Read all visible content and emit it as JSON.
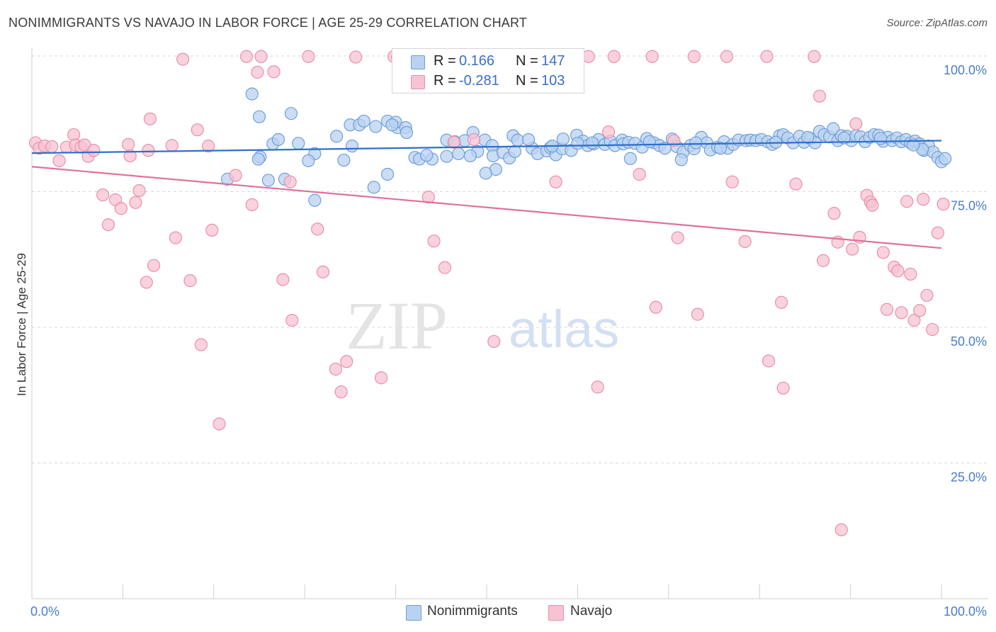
{
  "title": "NONIMMIGRANTS VS NAVAJO IN LABOR FORCE | AGE 25-29 CORRELATION CHART",
  "source": "Source: ZipAtlas.com",
  "watermark": {
    "zip": "ZIP",
    "atlas": "atlas"
  },
  "legend_top": {
    "rows": [
      {
        "r_label": "R =",
        "r_value": "0.166",
        "n_label": "N =",
        "n_value": "147"
      },
      {
        "r_label": "R =",
        "r_value": "-0.281",
        "n_label": "N =",
        "n_value": "103"
      }
    ]
  },
  "legend_bottom": [
    "Nonimmigrants",
    "Navajo"
  ],
  "colors": {
    "blue_fill": "#b9d2f2",
    "blue_stroke": "#6f9fd8",
    "blue_line": "#2f6fcc",
    "pink_fill": "#f7c3d2",
    "pink_stroke": "#e890ab",
    "pink_line": "#e0709b",
    "grid": "#d8d8d8",
    "tick_label": "#4a7dc9"
  },
  "chart_data": {
    "type": "scatter",
    "xlabel": "",
    "ylabel": "In Labor Force | Age 25-29",
    "x_range": [
      0,
      100
    ],
    "y_range": [
      0,
      100
    ],
    "x_tick_labels": [
      "0.0%",
      "100.0%"
    ],
    "y_tick_labels": [
      "25.0%",
      "50.0%",
      "75.0%",
      "100.0%"
    ],
    "y_ticks": [
      25,
      50,
      75,
      100
    ],
    "grid": true,
    "series": [
      {
        "name": "Nonimmigrants",
        "r": 0.166,
        "n": 147,
        "trend": [
          [
            0,
            82.1
          ],
          [
            100,
            84.4
          ]
        ],
        "points": [
          [
            24.2,
            93.0
          ],
          [
            25.0,
            88.8
          ],
          [
            28.5,
            89.4
          ],
          [
            26.5,
            83.8
          ],
          [
            27.1,
            84.6
          ],
          [
            29.3,
            83.9
          ],
          [
            25.1,
            81.4
          ],
          [
            24.9,
            81.0
          ],
          [
            31.1,
            82.0
          ],
          [
            33.5,
            85.2
          ],
          [
            35.0,
            87.3
          ],
          [
            36.0,
            87.3
          ],
          [
            36.5,
            88.0
          ],
          [
            35.2,
            83.4
          ],
          [
            34.3,
            80.8
          ],
          [
            37.8,
            87.0
          ],
          [
            39.1,
            88.0
          ],
          [
            40.2,
            86.8
          ],
          [
            40.0,
            87.8
          ],
          [
            41.1,
            86.8
          ],
          [
            39.6,
            87.3
          ],
          [
            41.2,
            85.9
          ],
          [
            42.1,
            81.3
          ],
          [
            42.6,
            81.0
          ],
          [
            44.0,
            81.0
          ],
          [
            45.6,
            84.5
          ],
          [
            46.5,
            84.2
          ],
          [
            45.6,
            81.5
          ],
          [
            46.9,
            82.0
          ],
          [
            47.6,
            84.4
          ],
          [
            48.5,
            85.9
          ],
          [
            49.0,
            82.4
          ],
          [
            49.8,
            84.5
          ],
          [
            50.6,
            83.5
          ],
          [
            50.7,
            81.6
          ],
          [
            51.8,
            82.2
          ],
          [
            52.5,
            81.2
          ],
          [
            53.1,
            82.4
          ],
          [
            52.9,
            85.3
          ],
          [
            53.4,
            84.5
          ],
          [
            55.0,
            83.0
          ],
          [
            54.6,
            84.6
          ],
          [
            55.6,
            82.0
          ],
          [
            56.6,
            82.5
          ],
          [
            57.0,
            83.1
          ],
          [
            57.6,
            81.8
          ],
          [
            58.3,
            82.9
          ],
          [
            58.4,
            84.7
          ],
          [
            59.3,
            82.6
          ],
          [
            59.9,
            85.4
          ],
          [
            60.6,
            84.3
          ],
          [
            61.1,
            83.5
          ],
          [
            61.8,
            83.8
          ],
          [
            62.3,
            84.6
          ],
          [
            63.0,
            83.7
          ],
          [
            63.6,
            84.3
          ],
          [
            64.1,
            83.5
          ],
          [
            64.9,
            84.5
          ],
          [
            65.0,
            83.8
          ],
          [
            65.6,
            84.1
          ],
          [
            66.3,
            83.9
          ],
          [
            67.1,
            83.2
          ],
          [
            67.6,
            84.8
          ],
          [
            68.4,
            84.0
          ],
          [
            69.0,
            83.5
          ],
          [
            69.6,
            83.0
          ],
          [
            70.4,
            84.7
          ],
          [
            70.9,
            83.3
          ],
          [
            71.6,
            82.3
          ],
          [
            72.4,
            83.5
          ],
          [
            72.8,
            82.9
          ],
          [
            73.6,
            85.0
          ],
          [
            74.2,
            84.0
          ],
          [
            74.6,
            82.7
          ],
          [
            75.4,
            83.2
          ],
          [
            76.1,
            84.2
          ],
          [
            76.5,
            83.0
          ],
          [
            77.1,
            83.7
          ],
          [
            77.7,
            84.5
          ],
          [
            78.5,
            84.4
          ],
          [
            79.0,
            84.5
          ],
          [
            79.6,
            84.4
          ],
          [
            80.2,
            84.6
          ],
          [
            80.9,
            84.2
          ],
          [
            81.4,
            83.7
          ],
          [
            82.2,
            85.3
          ],
          [
            82.6,
            85.5
          ],
          [
            83.1,
            84.9
          ],
          [
            83.7,
            84.0
          ],
          [
            84.4,
            85.2
          ],
          [
            84.9,
            84.1
          ],
          [
            85.6,
            84.8
          ],
          [
            86.1,
            84.0
          ],
          [
            86.6,
            86.1
          ],
          [
            87.1,
            85.5
          ],
          [
            87.7,
            85.1
          ],
          [
            88.1,
            86.6
          ],
          [
            88.6,
            84.4
          ],
          [
            89.0,
            85.3
          ],
          [
            89.6,
            85.2
          ],
          [
            90.1,
            84.4
          ],
          [
            90.6,
            85.3
          ],
          [
            91.1,
            85.1
          ],
          [
            91.6,
            84.2
          ],
          [
            92.1,
            85.0
          ],
          [
            92.6,
            85.5
          ],
          [
            93.1,
            85.4
          ],
          [
            93.6,
            84.3
          ],
          [
            94.1,
            85.0
          ],
          [
            94.6,
            84.4
          ],
          [
            95.1,
            84.9
          ],
          [
            95.6,
            84.2
          ],
          [
            96.1,
            84.6
          ],
          [
            96.6,
            84.0
          ],
          [
            97.1,
            84.3
          ],
          [
            97.6,
            83.8
          ],
          [
            98.1,
            82.6
          ],
          [
            98.6,
            83.4
          ],
          [
            99.1,
            82.3
          ],
          [
            99.6,
            81.3
          ],
          [
            100.0,
            80.5
          ],
          [
            100.4,
            81.1
          ],
          [
            97.9,
            82.8
          ],
          [
            96.9,
            83.6
          ],
          [
            71.4,
            80.9
          ],
          [
            65.8,
            81.1
          ],
          [
            51.0,
            79.1
          ],
          [
            49.9,
            78.4
          ],
          [
            39.1,
            78.2
          ],
          [
            37.6,
            75.8
          ],
          [
            31.1,
            73.4
          ],
          [
            27.8,
            77.3
          ],
          [
            26.0,
            77.1
          ],
          [
            21.5,
            77.3
          ],
          [
            30.4,
            80.7
          ],
          [
            48.2,
            81.6
          ],
          [
            43.4,
            81.7
          ],
          [
            57.2,
            83.4
          ],
          [
            60.0,
            83.9
          ],
          [
            61.6,
            84.0
          ],
          [
            67.9,
            84.2
          ],
          [
            73.0,
            84.0
          ],
          [
            75.7,
            83.0
          ],
          [
            81.8,
            84.1
          ],
          [
            85.3,
            85.0
          ],
          [
            89.3,
            84.9
          ],
          [
            93.3,
            84.8
          ]
        ]
      },
      {
        "name": "Navajo",
        "r": -0.281,
        "n": 103,
        "trend": [
          [
            0,
            79.6
          ],
          [
            100,
            64.6
          ]
        ],
        "points": [
          [
            0.4,
            84.0
          ],
          [
            0.8,
            83.0
          ],
          [
            1.4,
            83.4
          ],
          [
            2.2,
            83.3
          ],
          [
            3.0,
            80.7
          ],
          [
            3.8,
            83.2
          ],
          [
            4.6,
            85.5
          ],
          [
            4.8,
            83.6
          ],
          [
            5.4,
            83.2
          ],
          [
            5.8,
            83.6
          ],
          [
            6.2,
            81.5
          ],
          [
            6.8,
            82.6
          ],
          [
            7.8,
            74.4
          ],
          [
            8.4,
            68.9
          ],
          [
            9.2,
            73.5
          ],
          [
            9.8,
            71.9
          ],
          [
            10.6,
            83.7
          ],
          [
            10.8,
            81.6
          ],
          [
            11.4,
            73.0
          ],
          [
            11.8,
            75.2
          ],
          [
            12.6,
            58.3
          ],
          [
            12.8,
            82.6
          ],
          [
            13.0,
            88.4
          ],
          [
            13.4,
            61.4
          ],
          [
            15.4,
            83.5
          ],
          [
            15.8,
            66.5
          ],
          [
            16.6,
            99.4
          ],
          [
            17.4,
            58.6
          ],
          [
            18.2,
            86.4
          ],
          [
            18.6,
            46.8
          ],
          [
            19.4,
            83.4
          ],
          [
            19.8,
            67.9
          ],
          [
            20.6,
            32.2
          ],
          [
            22.4,
            78.0
          ],
          [
            23.6,
            99.9
          ],
          [
            24.2,
            72.6
          ],
          [
            24.8,
            97.0
          ],
          [
            25.2,
            99.9
          ],
          [
            26.6,
            97.1
          ],
          [
            27.6,
            58.8
          ],
          [
            28.4,
            76.8
          ],
          [
            28.6,
            51.3
          ],
          [
            30.4,
            99.9
          ],
          [
            31.4,
            68.1
          ],
          [
            32.0,
            60.2
          ],
          [
            33.4,
            42.3
          ],
          [
            34.0,
            38.1
          ],
          [
            34.6,
            43.7
          ],
          [
            35.6,
            99.8
          ],
          [
            38.4,
            40.7
          ],
          [
            39.8,
            99.9
          ],
          [
            40.2,
            99.8
          ],
          [
            43.6,
            74.0
          ],
          [
            44.2,
            65.9
          ],
          [
            45.4,
            61.0
          ],
          [
            46.4,
            84.1
          ],
          [
            46.6,
            99.8
          ],
          [
            48.6,
            84.6
          ],
          [
            49.2,
            99.9
          ],
          [
            50.8,
            47.4
          ],
          [
            51.2,
            99.9
          ],
          [
            53.8,
            99.8
          ],
          [
            56.2,
            99.9
          ],
          [
            57.6,
            76.8
          ],
          [
            61.2,
            99.9
          ],
          [
            62.2,
            39.0
          ],
          [
            63.4,
            86.0
          ],
          [
            64.0,
            99.9
          ],
          [
            66.8,
            78.2
          ],
          [
            68.2,
            99.9
          ],
          [
            68.6,
            53.7
          ],
          [
            70.6,
            84.4
          ],
          [
            71.0,
            66.5
          ],
          [
            72.8,
            99.9
          ],
          [
            73.2,
            52.4
          ],
          [
            76.4,
            99.9
          ],
          [
            77.0,
            76.8
          ],
          [
            78.4,
            65.8
          ],
          [
            80.8,
            99.9
          ],
          [
            81.0,
            43.8
          ],
          [
            82.4,
            54.6
          ],
          [
            82.6,
            38.8
          ],
          [
            84.0,
            76.4
          ],
          [
            86.0,
            99.9
          ],
          [
            86.6,
            92.6
          ],
          [
            87.0,
            62.3
          ],
          [
            88.2,
            71.0
          ],
          [
            88.6,
            65.7
          ],
          [
            89.0,
            12.7
          ],
          [
            90.2,
            64.4
          ],
          [
            90.6,
            87.5
          ],
          [
            91.0,
            66.6
          ],
          [
            91.8,
            74.3
          ],
          [
            92.2,
            73.1
          ],
          [
            92.4,
            72.5
          ],
          [
            93.6,
            63.8
          ],
          [
            94.0,
            53.3
          ],
          [
            94.8,
            61.1
          ],
          [
            95.2,
            60.4
          ],
          [
            95.6,
            52.7
          ],
          [
            96.2,
            73.2
          ],
          [
            96.6,
            59.8
          ],
          [
            97.0,
            51.3
          ],
          [
            97.6,
            53.1
          ],
          [
            98.0,
            73.6
          ],
          [
            98.4,
            55.9
          ],
          [
            99.0,
            49.6
          ],
          [
            99.6,
            67.4
          ],
          [
            100.2,
            72.7
          ]
        ]
      }
    ]
  }
}
